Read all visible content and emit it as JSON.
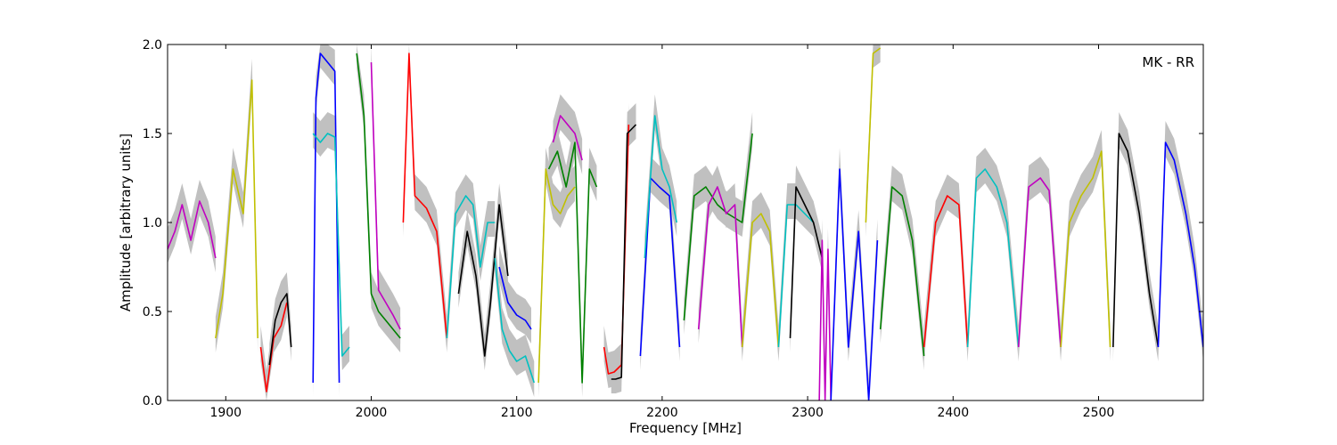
{
  "chart_data": {
    "type": "line",
    "title": "",
    "annotation": "MK - RR",
    "xlabel": "Frequency [MHz]",
    "ylabel": "Amplitude [arbitrary units]",
    "xlim": [
      1860,
      2572
    ],
    "ylim": [
      0.0,
      2.0
    ],
    "xticks": [
      1900,
      2000,
      2100,
      2200,
      2300,
      2400,
      2500
    ],
    "yticks": [
      0.0,
      0.5,
      1.0,
      1.5,
      2.0
    ],
    "xtick_labels": [
      "1900",
      "2000",
      "2100",
      "2200",
      "2300",
      "2400",
      "2500"
    ],
    "ytick_labels": [
      "0.0",
      "0.5",
      "1.0",
      "1.5",
      "2.0"
    ],
    "grid": false,
    "envelope_color": "#c0c0c0",
    "series": [
      {
        "color": "#c000c0",
        "x": [
          1860,
          1865,
          1870,
          1876,
          1882,
          1888,
          1893
        ],
        "y": [
          0.85,
          0.95,
          1.1,
          0.9,
          1.12,
          1.0,
          0.8
        ]
      },
      {
        "color": "#c0c000",
        "x": [
          1893,
          1898,
          1905,
          1912,
          1918,
          1922
        ],
        "y": [
          0.35,
          0.6,
          1.3,
          1.05,
          1.8,
          0.35
        ]
      },
      {
        "color": "#ff0000",
        "x": [
          1924,
          1928,
          1933,
          1938,
          1942
        ],
        "y": [
          0.3,
          0.05,
          0.35,
          0.42,
          0.55
        ]
      },
      {
        "color": "#000000",
        "x": [
          1930,
          1934,
          1938,
          1942,
          1945
        ],
        "y": [
          0.2,
          0.45,
          0.55,
          0.6,
          0.3
        ]
      },
      {
        "color": "#0000ff",
        "x": [
          1960,
          1962,
          1965,
          1970,
          1975,
          1978
        ],
        "y": [
          0.1,
          1.7,
          1.95,
          1.9,
          1.85,
          0.1
        ]
      },
      {
        "color": "#00c0c0",
        "x": [
          1960,
          1965,
          1970,
          1975,
          1980,
          1985
        ],
        "y": [
          1.5,
          1.45,
          1.5,
          1.48,
          0.25,
          0.3
        ]
      },
      {
        "color": "#008000",
        "x": [
          1990,
          1995,
          2000,
          2005,
          2010,
          2015,
          2020
        ],
        "y": [
          1.95,
          1.6,
          0.6,
          0.5,
          0.45,
          0.4,
          0.35
        ]
      },
      {
        "color": "#c000c0",
        "x": [
          2000,
          2005,
          2010,
          2015,
          2020
        ],
        "y": [
          1.9,
          0.62,
          0.55,
          0.48,
          0.4
        ]
      },
      {
        "color": "#ff0000",
        "x": [
          2022,
          2026,
          2030,
          2038,
          2045,
          2052
        ],
        "y": [
          1.0,
          1.95,
          1.15,
          1.08,
          0.95,
          0.35
        ]
      },
      {
        "color": "#00c0c0",
        "x": [
          2052,
          2058,
          2065,
          2070,
          2075,
          2080,
          2085
        ],
        "y": [
          0.35,
          1.05,
          1.15,
          1.1,
          0.75,
          1.0,
          1.0
        ]
      },
      {
        "color": "#000000",
        "x": [
          2060,
          2066,
          2072,
          2078,
          2082,
          2088,
          2094
        ],
        "y": [
          0.6,
          0.95,
          0.7,
          0.25,
          0.55,
          1.1,
          0.7
        ]
      },
      {
        "color": "#00c0c0",
        "x": [
          2085,
          2090,
          2095,
          2100,
          2106,
          2112
        ],
        "y": [
          0.8,
          0.4,
          0.28,
          0.22,
          0.25,
          0.1
        ]
      },
      {
        "color": "#0000ff",
        "x": [
          2088,
          2094,
          2100,
          2106,
          2110
        ],
        "y": [
          0.75,
          0.55,
          0.48,
          0.45,
          0.4
        ]
      },
      {
        "color": "#c0c000",
        "x": [
          2115,
          2120,
          2125,
          2130,
          2135,
          2140
        ],
        "y": [
          0.1,
          1.3,
          1.1,
          1.05,
          1.15,
          1.2
        ]
      },
      {
        "color": "#008000",
        "x": [
          2122,
          2128,
          2134,
          2140,
          2145,
          2150,
          2155
        ],
        "y": [
          1.3,
          1.4,
          1.2,
          1.45,
          0.1,
          1.3,
          1.2
        ]
      },
      {
        "color": "#c000c0",
        "x": [
          2125,
          2130,
          2135,
          2140,
          2145
        ],
        "y": [
          1.45,
          1.6,
          1.55,
          1.5,
          1.35
        ]
      },
      {
        "color": "#ff0000",
        "x": [
          2160,
          2163,
          2167,
          2172,
          2177
        ],
        "y": [
          0.3,
          0.15,
          0.16,
          0.2,
          1.55
        ]
      },
      {
        "color": "#000000",
        "x": [
          2165,
          2168,
          2172,
          2176,
          2182
        ],
        "y": [
          0.12,
          0.12,
          0.13,
          1.5,
          1.55
        ]
      },
      {
        "color": "#0000ff",
        "x": [
          2185,
          2192,
          2198,
          2205,
          2212
        ],
        "y": [
          0.25,
          1.25,
          1.2,
          1.15,
          0.3
        ]
      },
      {
        "color": "#00c0c0",
        "x": [
          2188,
          2195,
          2200,
          2205,
          2210
        ],
        "y": [
          0.8,
          1.6,
          1.3,
          1.2,
          1.0
        ]
      },
      {
        "color": "#008000",
        "x": [
          2215,
          2222,
          2230,
          2238,
          2245,
          2255,
          2262
        ],
        "y": [
          0.45,
          1.15,
          1.2,
          1.1,
          1.05,
          1.0,
          1.5
        ]
      },
      {
        "color": "#c000c0",
        "x": [
          2225,
          2232,
          2238,
          2244,
          2250,
          2255
        ],
        "y": [
          0.4,
          1.1,
          1.2,
          1.05,
          1.1,
          0.3
        ]
      },
      {
        "color": "#c0c000",
        "x": [
          2255,
          2262,
          2268,
          2274,
          2280
        ],
        "y": [
          0.3,
          1.0,
          1.05,
          0.95,
          0.3
        ]
      },
      {
        "color": "#00c0c0",
        "x": [
          2280,
          2286,
          2292,
          2298,
          2304
        ],
        "y": [
          0.3,
          1.1,
          1.1,
          1.05,
          1.0
        ]
      },
      {
        "color": "#000000",
        "x": [
          2288,
          2292,
          2298,
          2304,
          2310
        ],
        "y": [
          0.35,
          1.2,
          1.1,
          1.0,
          0.8
        ]
      },
      {
        "color": "#c000c0",
        "x": [
          2308,
          2310,
          2312,
          2314,
          2316
        ],
        "y": [
          0.0,
          0.9,
          0.0,
          0.85,
          0.0
        ]
      },
      {
        "color": "#0000ff",
        "x": [
          2316,
          2322,
          2328,
          2335,
          2342,
          2348
        ],
        "y": [
          0.0,
          1.3,
          0.3,
          0.95,
          0.0,
          0.9
        ]
      },
      {
        "color": "#c0c000",
        "x": [
          2340,
          2345,
          2350
        ],
        "y": [
          1.0,
          1.95,
          1.98
        ]
      },
      {
        "color": "#008000",
        "x": [
          2350,
          2358,
          2365,
          2372,
          2380
        ],
        "y": [
          0.4,
          1.2,
          1.15,
          0.9,
          0.25
        ]
      },
      {
        "color": "#ff0000",
        "x": [
          2380,
          2388,
          2396,
          2404,
          2410
        ],
        "y": [
          0.3,
          1.0,
          1.15,
          1.1,
          0.3
        ]
      },
      {
        "color": "#00c0c0",
        "x": [
          2410,
          2416,
          2422,
          2430,
          2437,
          2445
        ],
        "y": [
          0.3,
          1.25,
          1.3,
          1.2,
          1.0,
          0.3
        ]
      },
      {
        "color": "#c000c0",
        "x": [
          2445,
          2452,
          2460,
          2466,
          2474
        ],
        "y": [
          0.3,
          1.2,
          1.25,
          1.18,
          0.3
        ]
      },
      {
        "color": "#c0c000",
        "x": [
          2474,
          2480,
          2488,
          2496,
          2502,
          2508
        ],
        "y": [
          0.3,
          1.0,
          1.15,
          1.25,
          1.4,
          0.3
        ]
      },
      {
        "color": "#000000",
        "x": [
          2510,
          2514,
          2520,
          2528,
          2535,
          2541
        ],
        "y": [
          0.3,
          1.5,
          1.4,
          1.05,
          0.6,
          0.3
        ]
      },
      {
        "color": "#0000ff",
        "x": [
          2541,
          2546,
          2552,
          2560,
          2566,
          2572
        ],
        "y": [
          0.3,
          1.45,
          1.35,
          1.05,
          0.75,
          0.3
        ]
      }
    ]
  }
}
